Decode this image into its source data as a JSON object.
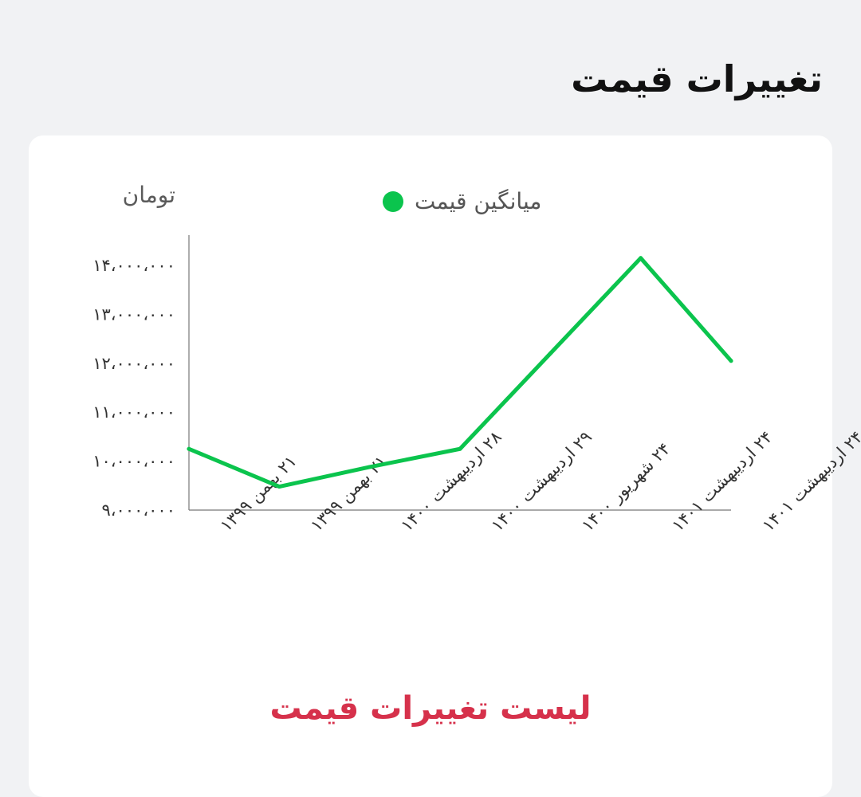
{
  "page": {
    "title": "تغییرات قیمت"
  },
  "chart_data": {
    "type": "line",
    "ylabel": "تومان",
    "legend": {
      "position": "top-center"
    },
    "grid": false,
    "ylim": [
      9000000,
      14000000
    ],
    "yticks": [
      {
        "value": 9000000,
        "label": "۹،۰۰۰،۰۰۰"
      },
      {
        "value": 10000000,
        "label": "۱۰،۰۰۰،۰۰۰"
      },
      {
        "value": 11000000,
        "label": "۱۱،۰۰۰،۰۰۰"
      },
      {
        "value": 12000000,
        "label": "۱۲،۰۰۰،۰۰۰"
      },
      {
        "value": 13000000,
        "label": "۱۳،۰۰۰،۰۰۰"
      },
      {
        "value": 14000000,
        "label": "۱۴،۰۰۰،۰۰۰"
      }
    ],
    "categories": [
      "۲۱ بهمن ۱۳۹۹",
      "۲۱ بهمن ۱۳۹۹",
      "۲۸ اردیبهشت ۱۴۰۰",
      "۲۹ اردیبهشت ۱۴۰۰",
      "۲۴ شهریور ۱۴۰۰",
      "۲۴ اردیبهشت ۱۴۰۱",
      "۲۴ اردیبهشت ۱۴۰۱"
    ],
    "series": [
      {
        "name": "میانگین قیمت",
        "color": "#0bc44d",
        "values": [
          10250000,
          9480000,
          9880000,
          10250000,
          12200000,
          14150000,
          12050000
        ]
      }
    ]
  },
  "footer": {
    "list_link": "لیست تغییرات قیمت"
  }
}
